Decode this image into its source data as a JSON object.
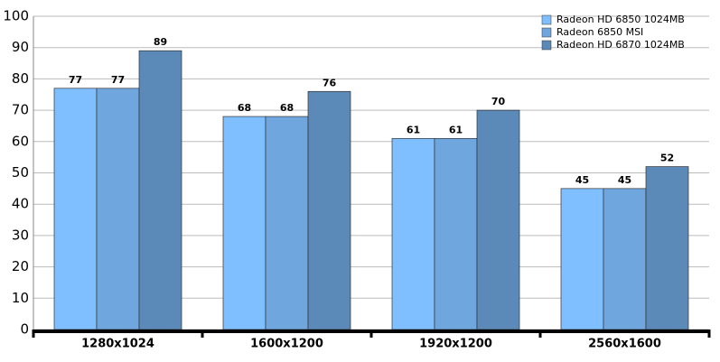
{
  "chart_data": {
    "type": "bar",
    "categories": [
      "1280x1024",
      "1600x1200",
      "1920x1200",
      "2560x1600"
    ],
    "series": [
      {
        "name": "Radeon HD 6850 1024MB",
        "color": "#80bfff",
        "values": [
          77,
          68,
          61,
          45
        ]
      },
      {
        "name": "Radeon 6850 MSI",
        "color": "#6fa6de",
        "values": [
          77,
          68,
          61,
          45
        ]
      },
      {
        "name": "Radeon HD 6870 1024MB",
        "color": "#5b89b8",
        "values": [
          89,
          76,
          70,
          52
        ]
      }
    ],
    "ylim": [
      0,
      100
    ],
    "yticks": [
      0,
      10,
      20,
      30,
      40,
      50,
      60,
      70,
      80,
      90,
      100
    ],
    "grid": true,
    "legend": "top-right"
  }
}
